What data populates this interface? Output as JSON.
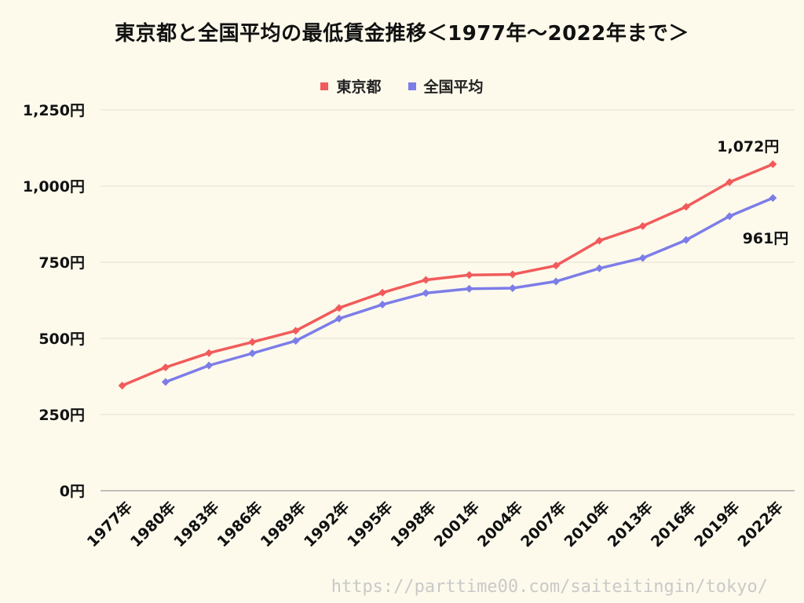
{
  "chart_data": {
    "type": "line",
    "title": "東京都と全国平均の最低賃金推移＜1977年〜2022年まで＞",
    "x": [
      "1977年",
      "1980年",
      "1983年",
      "1986年",
      "1989年",
      "1992年",
      "1995年",
      "1998年",
      "2001年",
      "2004年",
      "2007年",
      "2010年",
      "2013年",
      "2016年",
      "2019年",
      "2022年"
    ],
    "series": [
      {
        "name": "東京都",
        "color": "#f15b5b",
        "values": [
          345,
          405,
          452,
          488,
          525,
          600,
          650,
          692,
          708,
          710,
          739,
          821,
          869,
          932,
          1013,
          1072
        ]
      },
      {
        "name": "全国平均",
        "color": "#7d7de8",
        "values": [
          null,
          357,
          411,
          451,
          492,
          565,
          611,
          649,
          663,
          665,
          687,
          730,
          764,
          823,
          901,
          961
        ]
      }
    ],
    "yticks": [
      0,
      250,
      500,
      750,
      1000,
      1250
    ],
    "ytick_labels": [
      "0円",
      "250円",
      "500円",
      "750円",
      "1,000円",
      "1,250円"
    ],
    "ylim": [
      0,
      1250
    ],
    "grid": true,
    "legend_position": "top",
    "annotations": [
      {
        "series": "東京都",
        "x": "2022年",
        "text": "1,072円"
      },
      {
        "series": "全国平均",
        "x": "2022年",
        "text": "961円"
      }
    ]
  },
  "source_url": "https://parttime00.com/saiteitingin/tokyo/"
}
